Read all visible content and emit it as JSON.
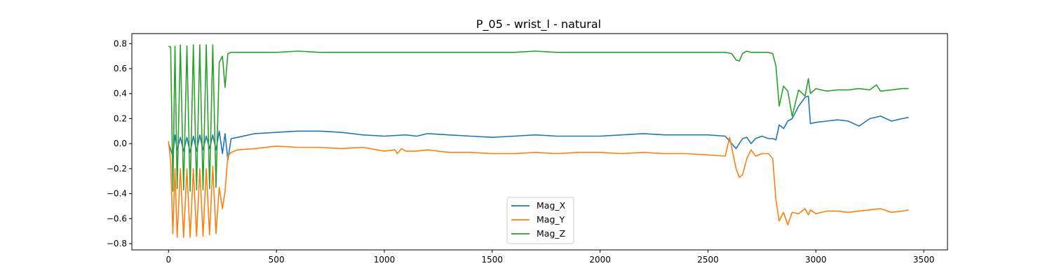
{
  "chart_data": {
    "type": "line",
    "title": "P_05 - wrist_l - natural",
    "xlabel": "",
    "ylabel": "",
    "xlim": [
      -170,
      3610
    ],
    "ylim": [
      -0.85,
      0.88
    ],
    "xticks": [
      0,
      500,
      1000,
      1500,
      2000,
      2500,
      3000,
      3500
    ],
    "yticks": [
      -0.8,
      -0.6,
      -0.4,
      -0.2,
      0.0,
      0.2,
      0.4,
      0.6,
      0.8
    ],
    "xtick_labels": [
      "0",
      "500",
      "1000",
      "1500",
      "2000",
      "2500",
      "3000",
      "3500"
    ],
    "ytick_labels": [
      "−0.8",
      "−0.6",
      "−0.4",
      "−0.2",
      "0.0",
      "0.2",
      "0.4",
      "0.6",
      "0.8"
    ],
    "grid": false,
    "legend_position": "bottom-center",
    "series": [
      {
        "name": "Mag_X",
        "color": "#1f77b4",
        "x": [
          0,
          10,
          20,
          30,
          40,
          55,
          70,
          85,
          100,
          115,
          130,
          145,
          160,
          175,
          190,
          205,
          220,
          235,
          250,
          262,
          275,
          290,
          320,
          400,
          500,
          600,
          700,
          800,
          900,
          1000,
          1100,
          1150,
          1200,
          1300,
          1400,
          1500,
          1600,
          1700,
          1800,
          1900,
          2000,
          2100,
          2200,
          2300,
          2400,
          2500,
          2580,
          2610,
          2630,
          2645,
          2660,
          2680,
          2700,
          2720,
          2750,
          2780,
          2800,
          2815,
          2830,
          2850,
          2870,
          2890,
          2920,
          2950,
          2965,
          2975,
          3000,
          3050,
          3100,
          3150,
          3200,
          3250,
          3300,
          3350,
          3400,
          3430
        ],
        "y": [
          0.0,
          -0.05,
          -0.1,
          0.07,
          -0.05,
          0.05,
          -0.06,
          0.05,
          -0.07,
          0.06,
          -0.06,
          0.07,
          -0.05,
          0.06,
          -0.04,
          0.07,
          -0.05,
          0.1,
          -0.08,
          0.08,
          -0.13,
          0.04,
          0.05,
          0.08,
          0.09,
          0.1,
          0.1,
          0.09,
          0.07,
          0.06,
          0.07,
          0.06,
          0.08,
          0.07,
          0.06,
          0.05,
          0.06,
          0.07,
          0.06,
          0.06,
          0.06,
          0.07,
          0.08,
          0.07,
          0.07,
          0.07,
          0.06,
          0.0,
          -0.04,
          0.0,
          0.04,
          0.05,
          0.0,
          0.04,
          0.06,
          0.04,
          0.04,
          0.03,
          0.15,
          0.12,
          0.18,
          0.2,
          0.3,
          0.37,
          0.38,
          0.16,
          0.17,
          0.18,
          0.19,
          0.18,
          0.14,
          0.2,
          0.22,
          0.18,
          0.2,
          0.21
        ]
      },
      {
        "name": "Mag_Y",
        "color": "#ff7f0e",
        "x": [
          0,
          10,
          20,
          30,
          40,
          55,
          70,
          85,
          100,
          115,
          130,
          145,
          160,
          175,
          190,
          205,
          220,
          235,
          250,
          262,
          275,
          290,
          320,
          400,
          500,
          600,
          700,
          800,
          900,
          1000,
          1050,
          1060,
          1080,
          1100,
          1150,
          1200,
          1300,
          1400,
          1500,
          1600,
          1700,
          1800,
          1900,
          2000,
          2100,
          2200,
          2300,
          2400,
          2500,
          2580,
          2600,
          2630,
          2645,
          2660,
          2680,
          2700,
          2720,
          2750,
          2780,
          2800,
          2815,
          2830,
          2850,
          2870,
          2890,
          2920,
          2950,
          2965,
          2975,
          3000,
          3050,
          3100,
          3150,
          3200,
          3250,
          3300,
          3350,
          3400,
          3430
        ],
        "y": [
          0.02,
          -0.15,
          -0.72,
          -0.2,
          -0.75,
          -0.2,
          -0.75,
          -0.2,
          -0.75,
          -0.2,
          -0.74,
          -0.2,
          -0.74,
          -0.2,
          -0.73,
          -0.18,
          -0.72,
          -0.35,
          -0.52,
          -0.38,
          -0.1,
          -0.07,
          -0.05,
          -0.04,
          -0.02,
          -0.03,
          -0.03,
          -0.04,
          -0.03,
          -0.06,
          -0.05,
          -0.08,
          -0.04,
          -0.06,
          -0.06,
          -0.05,
          -0.07,
          -0.07,
          -0.08,
          -0.08,
          -0.07,
          -0.08,
          -0.07,
          -0.07,
          -0.08,
          -0.07,
          -0.08,
          -0.08,
          -0.09,
          -0.1,
          0.05,
          -0.2,
          -0.27,
          -0.25,
          -0.12,
          -0.05,
          -0.1,
          -0.08,
          -0.08,
          -0.12,
          -0.45,
          -0.62,
          -0.55,
          -0.65,
          -0.55,
          -0.56,
          -0.52,
          -0.57,
          -0.53,
          -0.56,
          -0.54,
          -0.54,
          -0.55,
          -0.54,
          -0.53,
          -0.52,
          -0.55,
          -0.54,
          -0.53
        ]
      },
      {
        "name": "Mag_Z",
        "color": "#2ca02c",
        "x": [
          0,
          10,
          20,
          30,
          40,
          55,
          70,
          85,
          100,
          115,
          130,
          145,
          160,
          175,
          190,
          205,
          220,
          235,
          250,
          262,
          275,
          290,
          320,
          400,
          500,
          600,
          700,
          800,
          900,
          1000,
          1100,
          1200,
          1300,
          1400,
          1500,
          1600,
          1700,
          1800,
          1900,
          2000,
          2100,
          2200,
          2300,
          2400,
          2500,
          2580,
          2610,
          2630,
          2645,
          2660,
          2680,
          2700,
          2720,
          2750,
          2780,
          2800,
          2815,
          2830,
          2850,
          2870,
          2890,
          2920,
          2950,
          2965,
          2975,
          3000,
          3050,
          3100,
          3150,
          3200,
          3250,
          3280,
          3300,
          3350,
          3400,
          3430
        ],
        "y": [
          0.78,
          0.77,
          -0.38,
          0.78,
          -0.36,
          0.79,
          -0.37,
          0.78,
          -0.38,
          0.79,
          -0.37,
          0.79,
          -0.37,
          0.79,
          -0.36,
          0.79,
          -0.35,
          0.65,
          0.7,
          0.45,
          0.72,
          0.73,
          0.73,
          0.73,
          0.73,
          0.74,
          0.73,
          0.73,
          0.73,
          0.73,
          0.73,
          0.73,
          0.73,
          0.73,
          0.73,
          0.73,
          0.74,
          0.73,
          0.73,
          0.73,
          0.73,
          0.73,
          0.73,
          0.73,
          0.73,
          0.73,
          0.72,
          0.67,
          0.66,
          0.72,
          0.74,
          0.73,
          0.73,
          0.73,
          0.73,
          0.72,
          0.62,
          0.3,
          0.46,
          0.42,
          0.22,
          0.43,
          0.38,
          0.52,
          0.4,
          0.44,
          0.42,
          0.43,
          0.43,
          0.44,
          0.43,
          0.47,
          0.42,
          0.43,
          0.44,
          0.44
        ]
      }
    ]
  }
}
